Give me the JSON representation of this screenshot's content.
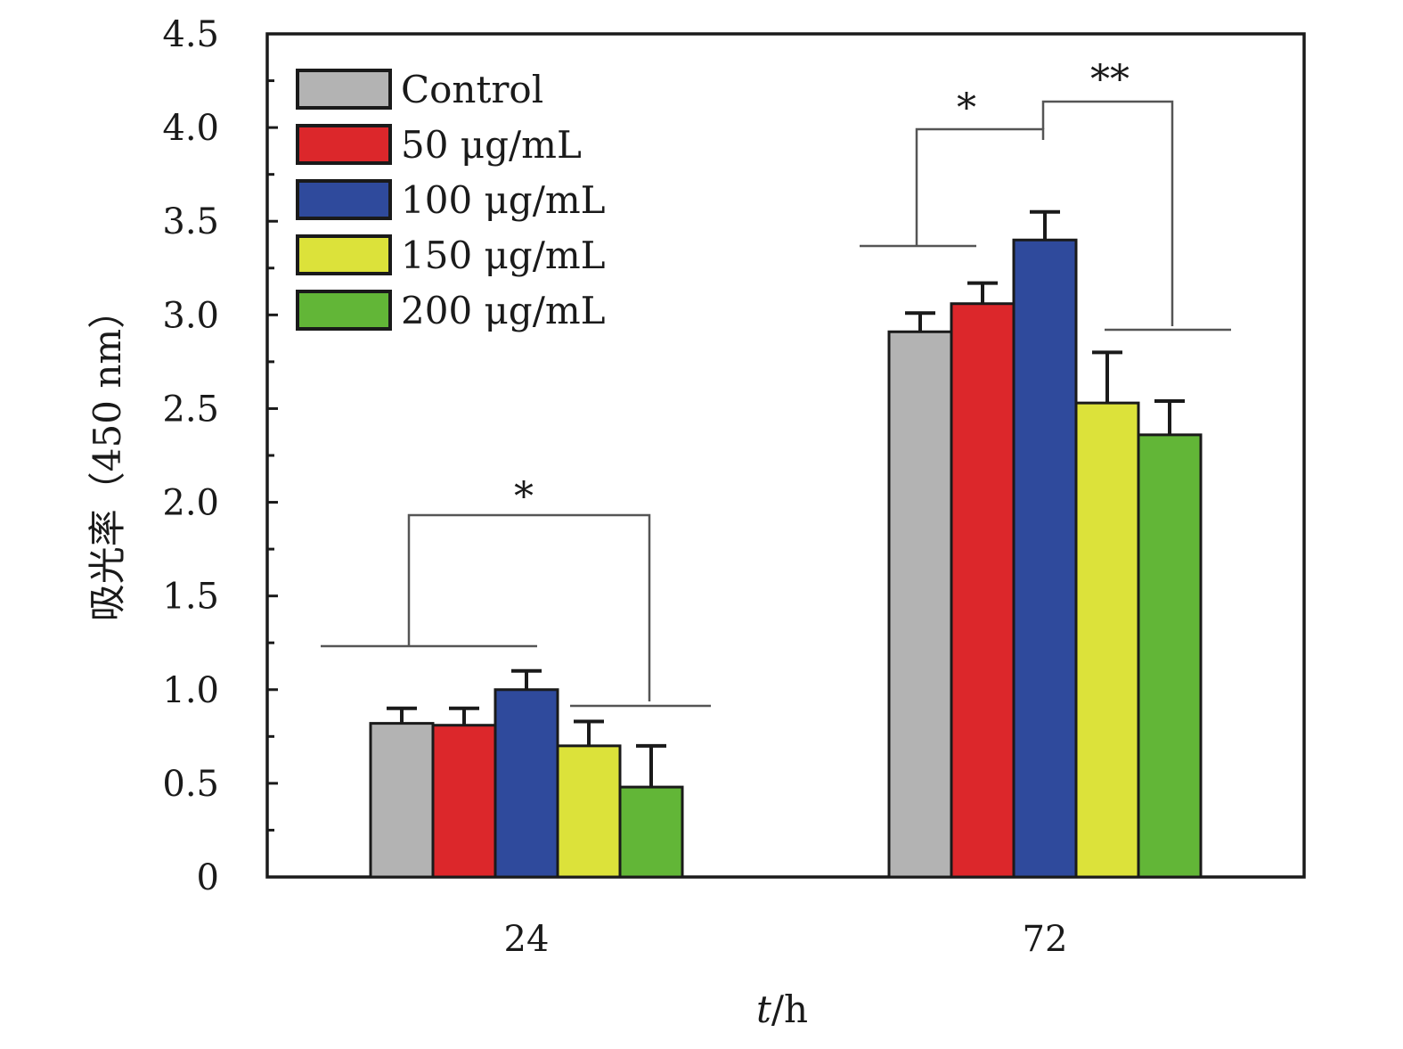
{
  "chart_data": {
    "type": "bar",
    "categories": [
      "24",
      "72"
    ],
    "series": [
      {
        "name": "Control",
        "color": "#b3b3b3",
        "values": [
          0.82,
          2.91
        ],
        "errors": [
          0.08,
          0.1
        ]
      },
      {
        "name": "50 μg/mL",
        "color": "#dc272b",
        "values": [
          0.81,
          3.06
        ],
        "errors": [
          0.09,
          0.11
        ]
      },
      {
        "name": "100 μg/mL",
        "color": "#2f4a9c",
        "values": [
          1.0,
          3.4
        ],
        "errors": [
          0.1,
          0.15
        ]
      },
      {
        "name": "150 μg/mL",
        "color": "#dce23a",
        "values": [
          0.7,
          2.53
        ],
        "errors": [
          0.13,
          0.27
        ]
      },
      {
        "name": "200 μg/mL",
        "color": "#62b637",
        "values": [
          0.48,
          2.36
        ],
        "errors": [
          0.22,
          0.18
        ]
      }
    ],
    "xlabel": "t/h",
    "xlabel_italic_part": "t",
    "xlabel_rest": "/h",
    "ylabel": "吸光率（450 nm）",
    "ylim": [
      0,
      4.5
    ],
    "yticks": [
      "0",
      "0.5",
      "1.0",
      "1.5",
      "2.0",
      "2.5",
      "3.0",
      "3.5",
      "4.0",
      "4.5"
    ],
    "grid": false,
    "legend_position": "top-left",
    "significance": [
      {
        "category": "24",
        "label": "*"
      },
      {
        "category": "72",
        "label": "*"
      },
      {
        "category": "72",
        "label": "**"
      }
    ]
  }
}
